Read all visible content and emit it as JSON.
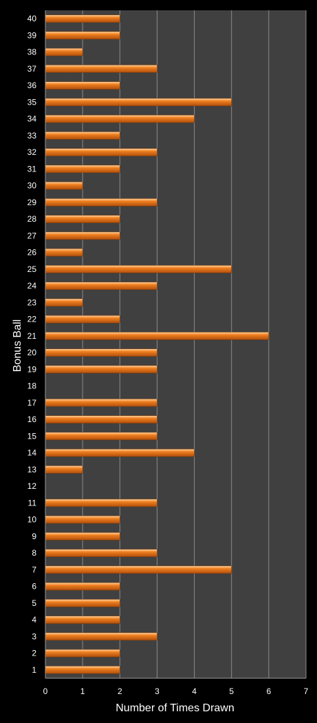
{
  "chart_data": {
    "type": "bar",
    "orientation": "horizontal",
    "xlabel": "Number of Times Drawn",
    "ylabel": "Bonus Ball",
    "xlim": [
      0,
      7
    ],
    "xticks": [
      0,
      1,
      2,
      3,
      4,
      5,
      6,
      7
    ],
    "grid": true,
    "categories": [
      "1",
      "2",
      "3",
      "4",
      "5",
      "6",
      "7",
      "8",
      "9",
      "10",
      "11",
      "12",
      "13",
      "14",
      "15",
      "16",
      "17",
      "18",
      "19",
      "20",
      "21",
      "22",
      "23",
      "24",
      "25",
      "26",
      "27",
      "28",
      "29",
      "30",
      "31",
      "32",
      "33",
      "34",
      "35",
      "36",
      "37",
      "38",
      "39",
      "40"
    ],
    "values": [
      2,
      2,
      3,
      2,
      2,
      2,
      5,
      3,
      2,
      2,
      3,
      0,
      1,
      4,
      3,
      3,
      3,
      0,
      3,
      3,
      6,
      2,
      1,
      3,
      5,
      1,
      2,
      2,
      3,
      1,
      2,
      3,
      2,
      4,
      5,
      2,
      3,
      1,
      2,
      2
    ],
    "colors": {
      "background": "#000000",
      "plot_area": "#404040",
      "gridline": "#8c8c8c",
      "bar": "#f08020",
      "bar_edge": "#7a3a08",
      "text": "#ffffff"
    }
  }
}
